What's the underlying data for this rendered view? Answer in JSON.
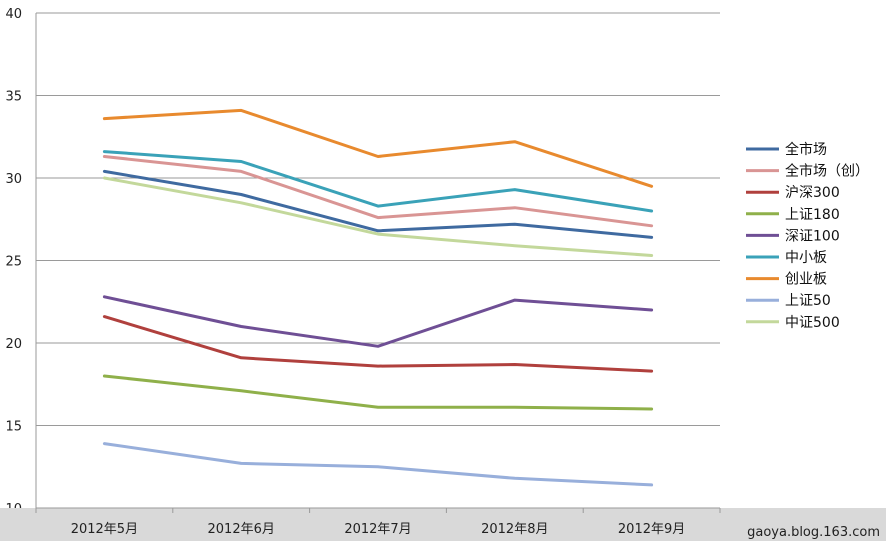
{
  "chart_data": {
    "type": "line",
    "categories": [
      "2012年5月",
      "2012年6月",
      "2012年7月",
      "2012年8月",
      "2012年9月"
    ],
    "ylim": [
      10,
      40
    ],
    "yticks": [
      "10",
      "15",
      "20",
      "25",
      "30",
      "35",
      "40"
    ],
    "grid": "horizontal",
    "legend_position": "right",
    "series": [
      {
        "name": "全市场",
        "color": "#3f6aa0",
        "values": [
          30.4,
          29.0,
          26.8,
          27.2,
          26.4
        ]
      },
      {
        "name": "全市场（创）",
        "color": "#d99594",
        "values": [
          31.3,
          30.4,
          27.6,
          28.2,
          27.1
        ]
      },
      {
        "name": "沪深300",
        "color": "#b0403d",
        "values": [
          21.6,
          19.1,
          18.6,
          18.7,
          18.3
        ]
      },
      {
        "name": "上证180",
        "color": "#8fb04a",
        "values": [
          18.0,
          17.1,
          16.1,
          16.1,
          16.0
        ]
      },
      {
        "name": "深证100",
        "color": "#6f4f95",
        "values": [
          22.8,
          21.0,
          19.8,
          22.6,
          22.0
        ]
      },
      {
        "name": "中小板",
        "color": "#3aa2b8",
        "values": [
          31.6,
          31.0,
          28.3,
          29.3,
          28.0
        ]
      },
      {
        "name": "创业板",
        "color": "#e88a2e",
        "values": [
          33.6,
          34.1,
          31.3,
          32.2,
          29.5
        ]
      },
      {
        "name": "上证50",
        "color": "#98afdb",
        "values": [
          13.9,
          12.7,
          12.5,
          11.8,
          11.4
        ]
      },
      {
        "name": "中证500",
        "color": "#c3d89b",
        "values": [
          30.0,
          28.5,
          26.6,
          25.9,
          25.3
        ]
      }
    ]
  },
  "watermark": "gaoya.blog.163.com"
}
